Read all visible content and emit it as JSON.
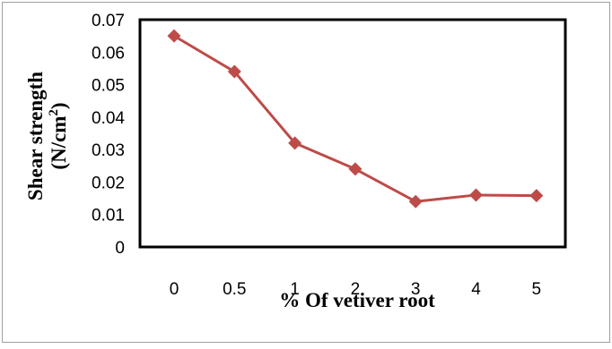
{
  "chart_data": {
    "type": "line",
    "title": "",
    "xlabel": "% Of vetiver root",
    "ylabel": {
      "line1": "Shear  strength",
      "line2_prefix": "(N/cm",
      "line2_sup": "2",
      "line2_suffix": ")"
    },
    "categories": [
      "0",
      "0.5",
      "1",
      "2",
      "3",
      "4",
      "5"
    ],
    "series": [
      {
        "values": [
          0.065,
          0.054,
          0.032,
          0.024,
          0.014,
          0.016,
          0.0158
        ],
        "color": "#be4b48",
        "marker": "diamond"
      }
    ],
    "ylim": [
      0,
      0.07
    ],
    "y_ticks": [
      "0",
      "0.01",
      "0.02",
      "0.03",
      "0.04",
      "0.05",
      "0.06",
      "0.07"
    ],
    "grid": false,
    "legend": "none"
  }
}
